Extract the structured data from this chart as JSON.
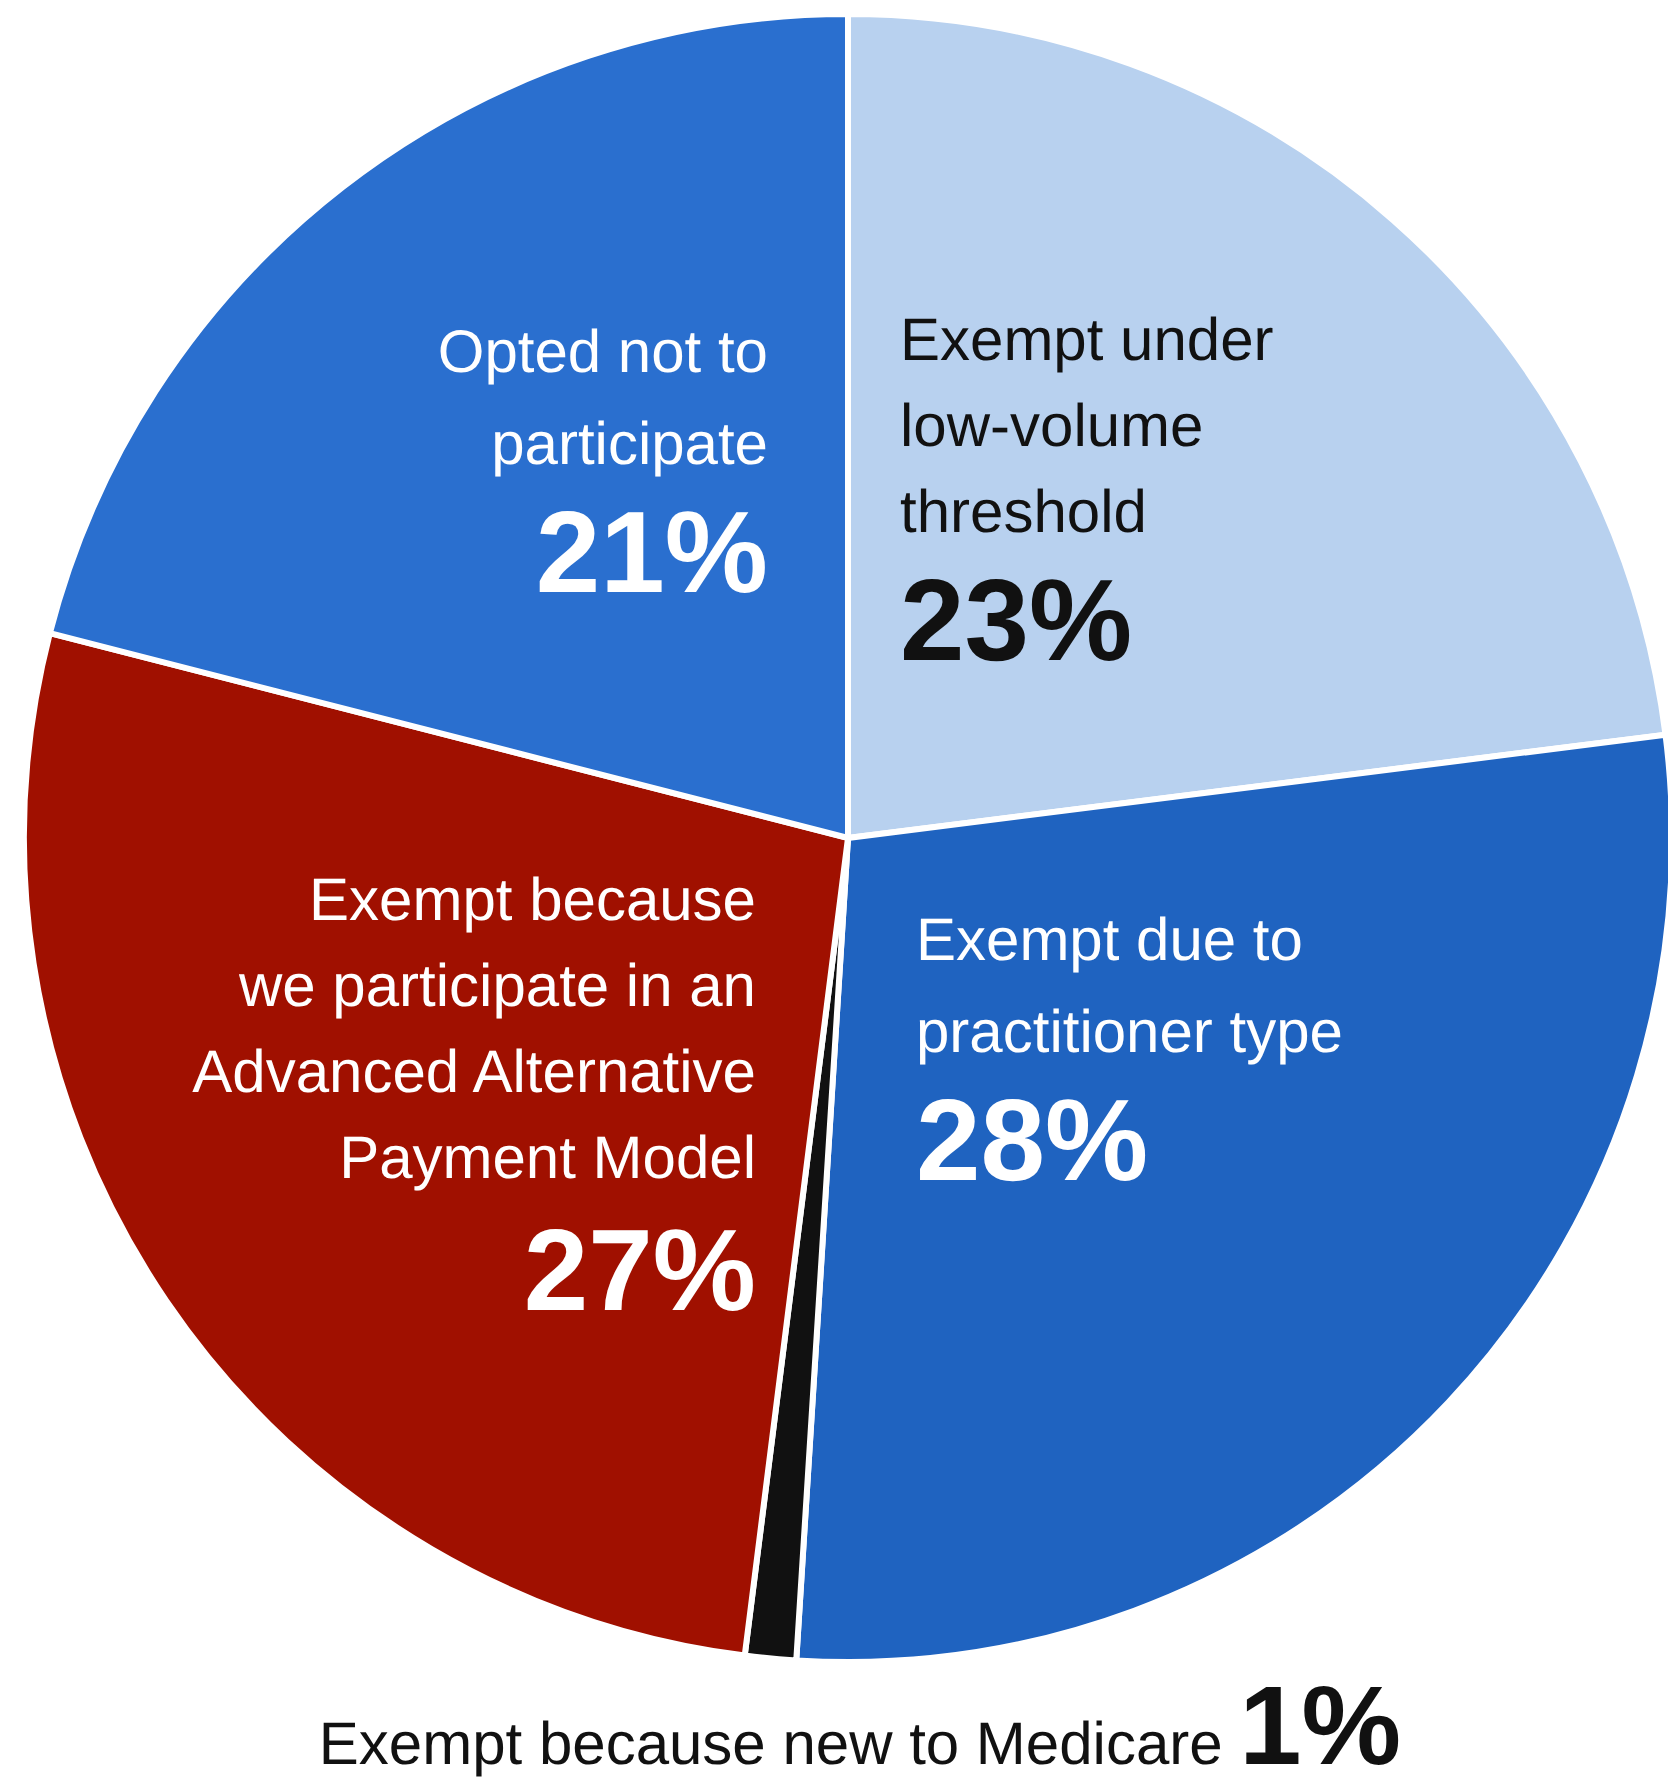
{
  "chart_data": {
    "type": "pie",
    "categories": [
      "Exempt under low-volume threshold",
      "Exempt due to practitioner type",
      "Exempt because new to Medicare",
      "Exempt because we participate in an Advanced Alternative Payment Model",
      "Opted not to participate"
    ],
    "values": [
      23,
      28,
      1,
      27,
      21
    ],
    "value_labels": [
      "23%",
      "28%",
      "1%",
      "27%",
      "21%"
    ],
    "colors": [
      "#b8d1ef",
      "#1f63c0",
      "#111111",
      "#a01000",
      "#2a6fcf"
    ]
  }
}
